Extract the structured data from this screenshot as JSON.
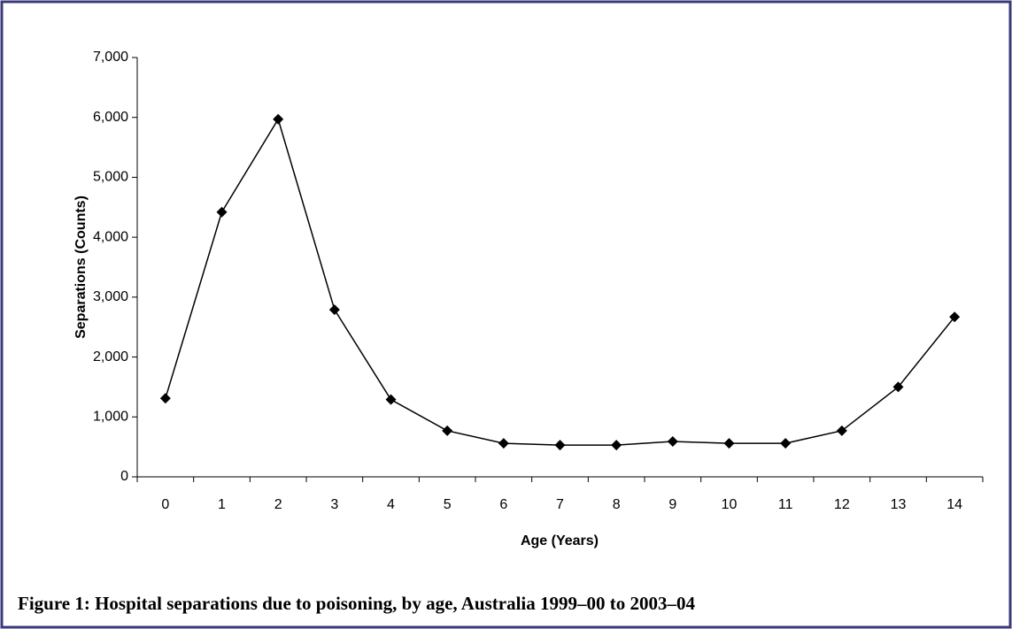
{
  "chart_data": {
    "type": "line",
    "caption": "Figure 1: Hospital separations due to poisoning, by age, Australia 1999–00 to 2003–04",
    "xlabel": "Age (Years)",
    "ylabel": "Separations (Counts)",
    "categories": [
      "0",
      "1",
      "2",
      "3",
      "4",
      "5",
      "6",
      "7",
      "8",
      "9",
      "10",
      "11",
      "12",
      "13",
      "14"
    ],
    "values": [
      1310,
      4420,
      5970,
      2790,
      1290,
      770,
      560,
      530,
      530,
      590,
      560,
      560,
      770,
      1500,
      2670
    ],
    "color": "#000000",
    "ylim": [
      0,
      7000
    ],
    "yticks": [
      0,
      {
        "value": 1000,
        "label": "1,000"
      },
      {
        "value": 2000,
        "label": "2,000"
      },
      {
        "value": 3000,
        "label": "3,000"
      },
      {
        "value": 4000,
        "label": "4,000"
      },
      {
        "value": 5000,
        "label": "5,000"
      },
      {
        "value": 6000,
        "label": "6,000"
      },
      {
        "value": 7000,
        "label": "7,000"
      }
    ],
    "grid": false
  }
}
